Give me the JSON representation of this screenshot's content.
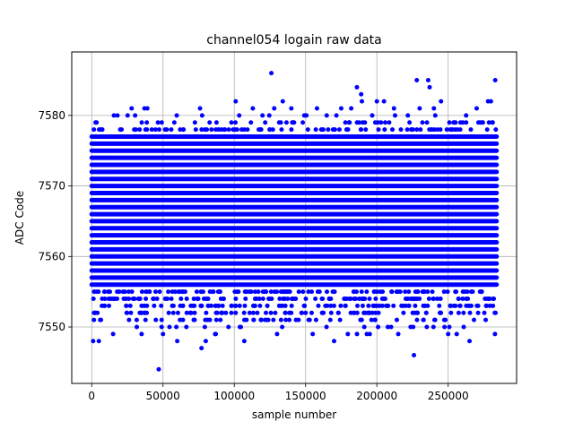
{
  "chart_data": {
    "type": "scatter",
    "title": "channel054 logain raw data",
    "xlabel": "sample number",
    "ylabel": "ADC Code",
    "xlim": [
      -14000,
      298000
    ],
    "ylim": [
      7542,
      7589
    ],
    "xticks": [
      0,
      50000,
      100000,
      150000,
      200000,
      250000
    ],
    "xtick_labels": [
      "0",
      "50000",
      "100000",
      "150000",
      "200000",
      "250000"
    ],
    "yticks": [
      7550,
      7560,
      7570,
      7580
    ],
    "ytick_labels": [
      "7550",
      "7560",
      "7570",
      "7580"
    ],
    "grid": true,
    "marker_color": "#0000ff",
    "series": [
      {
        "x_range": [
          0,
          284000
        ],
        "dense_band": [
          7556,
          7577
        ],
        "points": [
          [
            1000,
            7548
          ],
          [
            5000,
            7548
          ],
          [
            47000,
            7544
          ],
          [
            77000,
            7547
          ],
          [
            126000,
            7586
          ],
          [
            186000,
            7584
          ],
          [
            189000,
            7583
          ],
          [
            189500,
            7582
          ],
          [
            226000,
            7546
          ],
          [
            228000,
            7585
          ],
          [
            236000,
            7585
          ],
          [
            237000,
            7584
          ],
          [
            283000,
            7585
          ],
          [
            265000,
            7548
          ],
          [
            170000,
            7548
          ],
          [
            107000,
            7548
          ],
          [
            60000,
            7548
          ],
          [
            80000,
            7548
          ],
          [
            101000,
            7582
          ],
          [
            134000,
            7582
          ],
          [
            200000,
            7582
          ],
          [
            205000,
            7582
          ],
          [
            245000,
            7582
          ],
          [
            278000,
            7582
          ],
          [
            280000,
            7582
          ],
          [
            28000,
            7581
          ],
          [
            37000,
            7581
          ],
          [
            39000,
            7581
          ],
          [
            76000,
            7581
          ],
          [
            113000,
            7581
          ],
          [
            128000,
            7581
          ],
          [
            140000,
            7581
          ],
          [
            158000,
            7581
          ],
          [
            175000,
            7581
          ],
          [
            182000,
            7581
          ],
          [
            212000,
            7581
          ],
          [
            230000,
            7581
          ],
          [
            240000,
            7581
          ],
          [
            270000,
            7581
          ],
          [
            15000,
            7549
          ],
          [
            35000,
            7549
          ],
          [
            50000,
            7549
          ],
          [
            87000,
            7549
          ],
          [
            130000,
            7549
          ],
          [
            155000,
            7549
          ],
          [
            195000,
            7549
          ],
          [
            215000,
            7549
          ],
          [
            250000,
            7549
          ],
          [
            256000,
            7549
          ]
        ]
      }
    ]
  }
}
